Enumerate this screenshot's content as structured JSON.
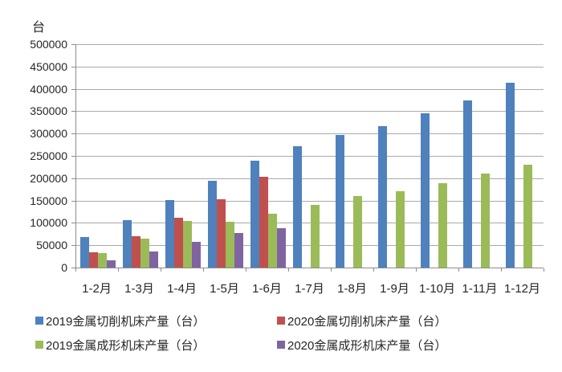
{
  "chart_data": {
    "type": "bar",
    "title": "",
    "ylabel": "台",
    "xlabel": "",
    "categories": [
      "1-2月",
      "1-3月",
      "1-4月",
      "1-5月",
      "1-6月",
      "1-7月",
      "1-8月",
      "1-9月",
      "1-10月",
      "1-11月",
      "1-12月"
    ],
    "series": [
      {
        "name": "2019金属切削机床产量（台）",
        "color": "#4F81BD",
        "values": [
          69000,
          107000,
          151000,
          194000,
          239000,
          271000,
          297000,
          316000,
          346000,
          374000,
          413000
        ]
      },
      {
        "name": "2020金属切削机床产量（台）",
        "color": "#C0504D",
        "values": [
          34000,
          71000,
          112000,
          153000,
          203000,
          null,
          null,
          null,
          null,
          null,
          null
        ]
      },
      {
        "name": "2019金属成形机床产量（台）",
        "color": "#9BBB59",
        "values": [
          32000,
          65000,
          104000,
          102000,
          120000,
          140000,
          160000,
          170000,
          189000,
          211000,
          231000
        ]
      },
      {
        "name": "2020金属成形机床产量（台）",
        "color": "#8064A2",
        "values": [
          16000,
          36000,
          57000,
          77000,
          88000,
          null,
          null,
          null,
          null,
          null,
          null
        ]
      }
    ],
    "ylim": [
      0,
      500000
    ],
    "ytick_step": 50000,
    "grid": true,
    "legend_position": "bottom",
    "colors": {
      "gridline": "#AAAAAA",
      "axis": "#8C8C8C",
      "text": "#262626"
    }
  }
}
